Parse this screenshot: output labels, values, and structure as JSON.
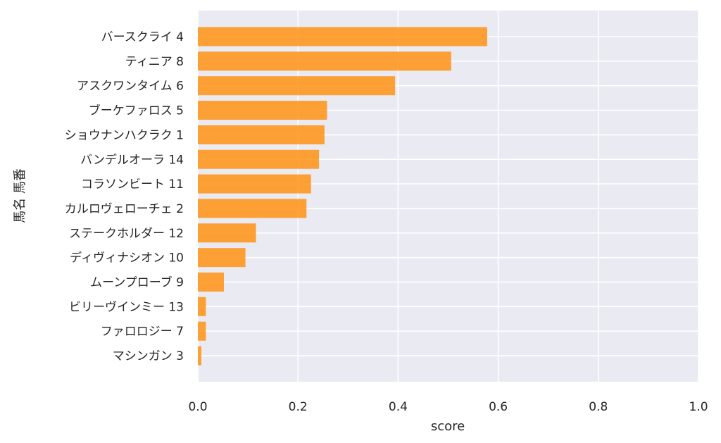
{
  "chart_data": {
    "type": "bar",
    "orientation": "horizontal",
    "categories": [
      "バースクライ 4",
      "ティニア 8",
      "アスクワンタイム 6",
      "ブーケファロス 5",
      "ショウナンハクラク 1",
      "バンデルオーラ 14",
      "コラソンビート 11",
      "カルロヴェローチェ 2",
      "ステークホルダー 12",
      "ディヴィナシオン 10",
      "ムーンプローブ 9",
      "ビリーヴインミー 13",
      "ファロロジー 7",
      "マシンガン 3"
    ],
    "values": [
      0.578,
      0.506,
      0.394,
      0.258,
      0.253,
      0.242,
      0.226,
      0.217,
      0.116,
      0.095,
      0.052,
      0.016,
      0.016,
      0.007
    ],
    "xlabel": "score",
    "ylabel": "馬名 馬番",
    "xlim": [
      0,
      1.0
    ],
    "xticks": [
      "0.0",
      "0.2",
      "0.4",
      "0.6",
      "0.8",
      "1.0"
    ],
    "grid": true,
    "bar_color": "#ff9214",
    "background_color": "#eaeaf2"
  }
}
